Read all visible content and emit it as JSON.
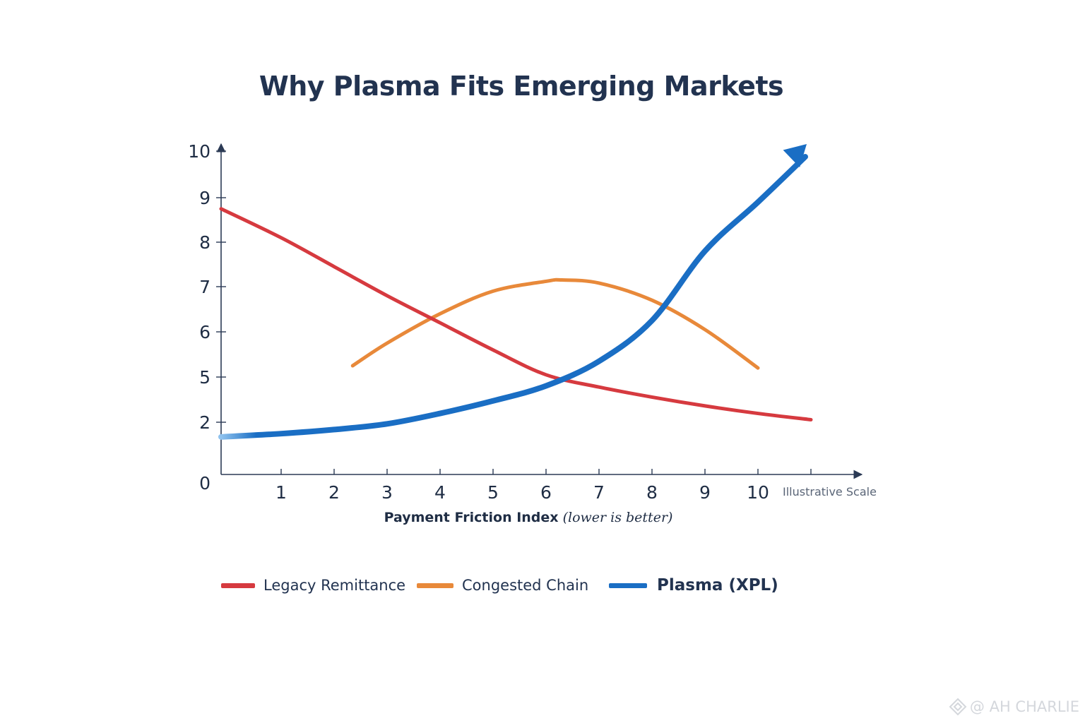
{
  "chart_data": {
    "type": "line",
    "title": "Why Plasma Fits Emerging Markets",
    "xlabel_main": "Payment Friction Index",
    "xlabel_sub": "(lower is better)",
    "ylabel": "",
    "x_ticks": [
      "1",
      "2",
      "3",
      "4",
      "5",
      "6",
      "7",
      "8",
      "9",
      "10"
    ],
    "y_ticks": [
      "0",
      "2",
      "5",
      "6",
      "7",
      "8",
      "9",
      "10"
    ],
    "x_note": "Illustrative Scale",
    "grid": false,
    "legend_position": "bottom",
    "series": [
      {
        "name": "Legacy Remittance",
        "color": "#d63a3f",
        "points": [
          [
            0,
            8.75
          ],
          [
            1,
            8.1
          ],
          [
            2,
            7.45
          ],
          [
            3,
            6.8
          ],
          [
            4,
            6.2
          ],
          [
            5,
            5.6
          ],
          [
            6,
            5.05
          ],
          [
            7,
            4.6
          ],
          [
            8,
            4.2
          ],
          [
            9,
            3.85
          ],
          [
            10,
            3.55
          ],
          [
            11,
            3.3
          ]
        ]
      },
      {
        "name": "Congested Chain",
        "color": "#e8893a",
        "points": [
          [
            2.35,
            5.25
          ],
          [
            3,
            5.75
          ],
          [
            4,
            6.4
          ],
          [
            5,
            6.9
          ],
          [
            6,
            7.12
          ],
          [
            6.3,
            7.15
          ],
          [
            7,
            7.08
          ],
          [
            8,
            6.7
          ],
          [
            9,
            6.05
          ],
          [
            10,
            5.2
          ]
        ]
      },
      {
        "name": "Plasma (XPL)",
        "color": "#1a6ec4",
        "arrow": true,
        "points": [
          [
            0,
            2.3
          ],
          [
            1,
            2.5
          ],
          [
            2,
            2.75
          ],
          [
            3,
            3.1
          ],
          [
            4,
            3.55
          ],
          [
            5,
            4.05
          ],
          [
            6,
            4.65
          ],
          [
            7,
            5.35
          ],
          [
            8,
            6.25
          ],
          [
            9,
            7.8
          ],
          [
            10,
            8.9
          ],
          [
            11,
            10.0
          ]
        ]
      }
    ]
  },
  "legend": [
    {
      "label": "Legacy Remittance",
      "color": "#d63a3f"
    },
    {
      "label": "Congested Chain",
      "color": "#e8893a"
    },
    {
      "label": "Plasma (XPL)",
      "color": "#1a6ec4"
    }
  ],
  "watermark": {
    "text": "@ AH CHARLIE",
    "icon": "diamond-logo-icon"
  }
}
